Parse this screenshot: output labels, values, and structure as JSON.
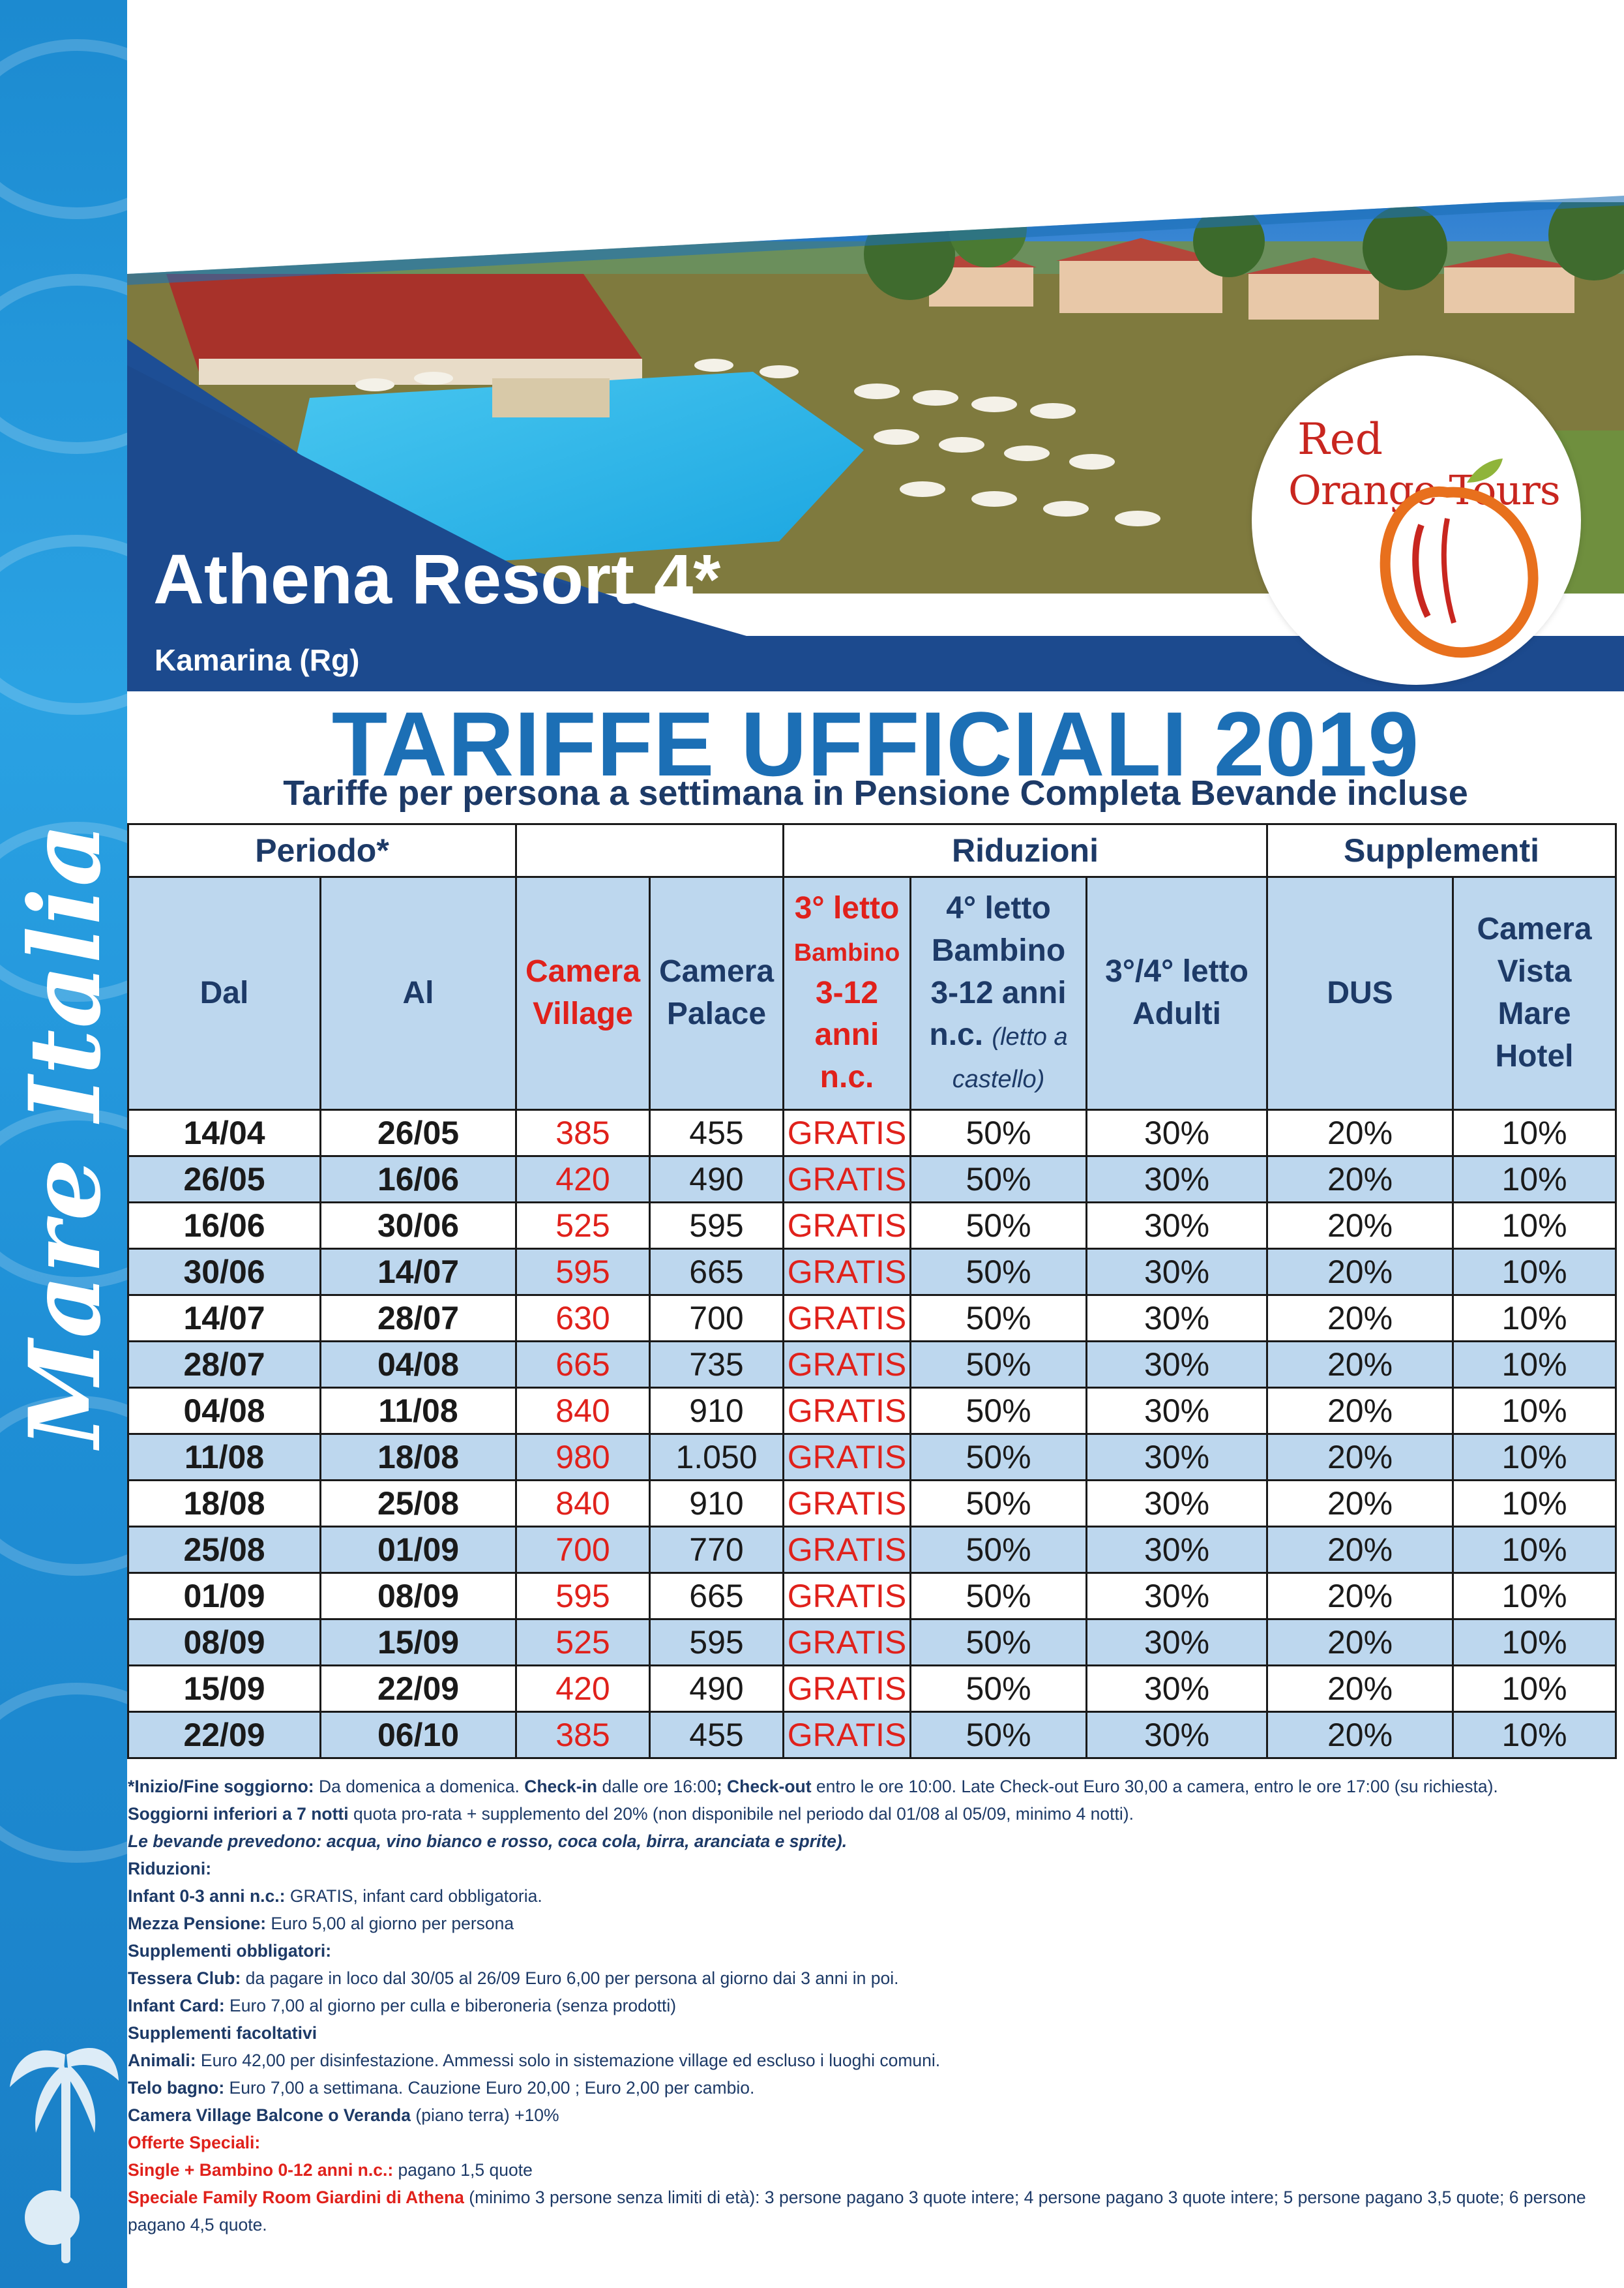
{
  "side_title": "Mare Italia",
  "resort": {
    "name": "Athena Resort 4*",
    "location": "Kamarina (Rg)"
  },
  "logo": {
    "line1": "Red",
    "line2": "Orange Tours"
  },
  "title": "TARIFFE UFFICIALI 2019",
  "subtitle": "Tariffe per persona a settimana in Pensione Completa Bevande incluse",
  "table": {
    "group_headers": {
      "periodo": "Periodo*",
      "riduzioni": "Riduzioni",
      "supplementi": "Supplementi"
    },
    "columns": {
      "dal": "Dal",
      "al": "Al",
      "village": [
        "Camera",
        "Village"
      ],
      "palace": [
        "Camera",
        "Palace"
      ],
      "terzo": [
        "3° letto",
        "Bambino",
        "3-12",
        "anni",
        "n.c."
      ],
      "quarto": [
        "4° letto",
        "Bambino",
        "3-12 anni",
        "n.c.",
        "(letto a",
        "castello)"
      ],
      "adulti": [
        "3°/4° letto",
        "Adulti"
      ],
      "dus": "DUS",
      "vista": [
        "Camera",
        "Vista",
        "Mare",
        "Hotel"
      ]
    },
    "rows": [
      {
        "dal": "14/04",
        "al": "26/05",
        "village": "385",
        "palace": "455",
        "terzo": "GRATIS",
        "quarto": "50%",
        "adulti": "30%",
        "dus": "20%",
        "vista": "10%"
      },
      {
        "dal": "26/05",
        "al": "16/06",
        "village": "420",
        "palace": "490",
        "terzo": "GRATIS",
        "quarto": "50%",
        "adulti": "30%",
        "dus": "20%",
        "vista": "10%"
      },
      {
        "dal": "16/06",
        "al": "30/06",
        "village": "525",
        "palace": "595",
        "terzo": "GRATIS",
        "quarto": "50%",
        "adulti": "30%",
        "dus": "20%",
        "vista": "10%"
      },
      {
        "dal": "30/06",
        "al": "14/07",
        "village": "595",
        "palace": "665",
        "terzo": "GRATIS",
        "quarto": "50%",
        "adulti": "30%",
        "dus": "20%",
        "vista": "10%"
      },
      {
        "dal": "14/07",
        "al": "28/07",
        "village": "630",
        "palace": "700",
        "terzo": "GRATIS",
        "quarto": "50%",
        "adulti": "30%",
        "dus": "20%",
        "vista": "10%"
      },
      {
        "dal": "28/07",
        "al": "04/08",
        "village": "665",
        "palace": "735",
        "terzo": "GRATIS",
        "quarto": "50%",
        "adulti": "30%",
        "dus": "20%",
        "vista": "10%"
      },
      {
        "dal": "04/08",
        "al": "11/08",
        "village": "840",
        "palace": "910",
        "terzo": "GRATIS",
        "quarto": "50%",
        "adulti": "30%",
        "dus": "20%",
        "vista": "10%"
      },
      {
        "dal": "11/08",
        "al": "18/08",
        "village": "980",
        "palace": "1.050",
        "terzo": "GRATIS",
        "quarto": "50%",
        "adulti": "30%",
        "dus": "20%",
        "vista": "10%"
      },
      {
        "dal": "18/08",
        "al": "25/08",
        "village": "840",
        "palace": "910",
        "terzo": "GRATIS",
        "quarto": "50%",
        "adulti": "30%",
        "dus": "20%",
        "vista": "10%"
      },
      {
        "dal": "25/08",
        "al": "01/09",
        "village": "700",
        "palace": "770",
        "terzo": "GRATIS",
        "quarto": "50%",
        "adulti": "30%",
        "dus": "20%",
        "vista": "10%"
      },
      {
        "dal": "01/09",
        "al": "08/09",
        "village": "595",
        "palace": "665",
        "terzo": "GRATIS",
        "quarto": "50%",
        "adulti": "30%",
        "dus": "20%",
        "vista": "10%"
      },
      {
        "dal": "08/09",
        "al": "15/09",
        "village": "525",
        "palace": "595",
        "terzo": "GRATIS",
        "quarto": "50%",
        "adulti": "30%",
        "dus": "20%",
        "vista": "10%"
      },
      {
        "dal": "15/09",
        "al": "22/09",
        "village": "420",
        "palace": "490",
        "terzo": "GRATIS",
        "quarto": "50%",
        "adulti": "30%",
        "dus": "20%",
        "vista": "10%"
      },
      {
        "dal": "22/09",
        "al": "06/10",
        "village": "385",
        "palace": "455",
        "terzo": "GRATIS",
        "quarto": "50%",
        "adulti": "30%",
        "dus": "20%",
        "vista": "10%"
      }
    ]
  },
  "notes": {
    "n1": {
      "b1": "*Inizio/Fine soggiorno:",
      "t1": " Da domenica a domenica. ",
      "b2": "Check-in",
      "t2": " dalle ore 16:00",
      "b3": "; Check-out",
      "t3": " entro le ore 10:00. Late Check-out Euro 30,00 a camera, entro le ore 17:00 (su richiesta)."
    },
    "n2": {
      "b": "Soggiorni inferiori a 7 notti",
      "t": " quota pro-rata + supplemento del 20% (non disponibile nel periodo dal 01/08 al 05/09, minimo 4 notti)."
    },
    "n3": "Le bevande prevedono: acqua, vino bianco e rosso, coca cola, birra, aranciata e sprite).",
    "n4": "Riduzioni:",
    "n5": {
      "b": "Infant 0-3 anni n.c.:",
      "t": " GRATIS, infant card obbligatoria."
    },
    "n6": {
      "b": "Mezza Pensione:",
      "t": "  Euro 5,00 al giorno per persona"
    },
    "n7": "Supplementi obbligatori:",
    "n8": {
      "b": "Tessera Club:",
      "t": " da pagare in loco dal 30/05 al 26/09 Euro 6,00 per persona al giorno dai 3 anni in poi."
    },
    "n9": {
      "b": "Infant Card:",
      "t": " Euro 7,00 al giorno per culla e biberoneria (senza prodotti)"
    },
    "n10": "Supplementi facoltativi",
    "n11": {
      "b": "Animali:",
      "t": " Euro 42,00 per disinfestazione. Ammessi solo in sistemazione village ed escluso i luoghi comuni."
    },
    "n12": {
      "b": "Telo bagno:",
      "t": " Euro 7,00 a settimana. Cauzione Euro 20,00 ; Euro 2,00 per cambio."
    },
    "n13": {
      "b": "Camera Village Balcone o Veranda",
      "t": " (piano terra) +10%"
    },
    "n14": "Offerte Speciali:",
    "n15": {
      "b": "Single + Bambino 0-12 anni n.c.:",
      "t": " pagano 1,5 quote"
    },
    "n16": {
      "b": "Speciale Family Room Giardini di Athena",
      "t": " (minimo 3 persone senza limiti di età): 3 persone pagano 3 quote intere; 4 persone pagano 3 quote intere; 5 persone pagano 3,5 quote; 6 persone pagano 4,5 quote."
    }
  },
  "colors": {
    "blue_band": "#1f8fd6",
    "title_blue": "#1c6fb5",
    "navy": "#1d3a67",
    "red": "#e0211b",
    "row_alt": "#bdd7ee"
  }
}
